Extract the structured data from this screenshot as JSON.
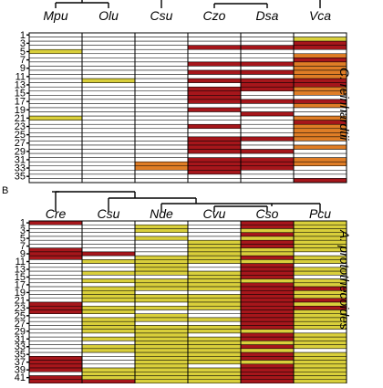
{
  "colors": {
    "empty": "#ffffff",
    "yellow": "#d9cf3b",
    "orange": "#df7d26",
    "darkred": "#a6161b",
    "grid": "#000000"
  },
  "panels": [
    {
      "letter": "",
      "species_label": "C. reinhardtii",
      "columns": [
        "Mpu",
        "Olu",
        "Csu",
        "Czo",
        "Dsa",
        "Vca"
      ],
      "row_labels": [
        "1",
        "3",
        "5",
        "7",
        "9",
        "11",
        "13",
        "15",
        "17",
        "19",
        "21",
        "23",
        "25",
        "27",
        "29",
        "31",
        "33",
        "35"
      ],
      "row_count": 36,
      "cells": [
        "000000",
        "00000y",
        "00000r",
        "000rrr",
        "y00000",
        "00000o",
        "00000r",
        "000rro",
        "00000o",
        "000rro",
        "00000o",
        "0y0rrr",
        "0000rr",
        "000rro",
        "000r0o",
        "000r00",
        "000rrr",
        "00000o",
        "000r00",
        "0000r0",
        "y0000o",
        "00000r",
        "000r0o",
        "00000o",
        "00000o",
        "000rro",
        "000r00",
        "000r0o",
        "000rr0",
        "000000",
        "000rro",
        "00orro",
        "00orr0",
        "000r00",
        "000000",
        "00000r"
      ]
    },
    {
      "letter": "B",
      "species_label": "A. protothecoides",
      "columns": [
        "Cre",
        "Csu",
        "Nde",
        "Cvu",
        "Cso",
        "Pcu"
      ],
      "row_labels": [
        "1",
        "3",
        "5",
        "7",
        "9",
        "11",
        "13",
        "15",
        "17",
        "19",
        "21",
        "23",
        "25",
        "27",
        "29",
        "31",
        "33",
        "35",
        "37",
        "39",
        "41"
      ],
      "row_count": 42,
      "cells": [
        "r000ry",
        "00y0ry",
        "00y0yy",
        "0000ry",
        "00y0yy",
        "000yry",
        "000yry",
        "r00yyy",
        "rr0yy0",
        "r0yyry",
        "0yyyyy",
        "00y0r0",
        "00y0ry",
        "0yyyry",
        "000yr0",
        "0yyyyy",
        "00yyry",
        "0yyyrr",
        "0y00ry",
        "0yyyry",
        "0yyyrr",
        "r00yry",
        "ryyyrr",
        "ry00ry",
        "00y0ry",
        "0yyyry",
        "0y00ry",
        "0yyyry",
        "0yyyy0",
        "00y0ry",
        "0yyyry",
        "00yyyy",
        "0yyyry",
        "0yyyy0",
        "00yyry",
        "r0yyry",
        "r0yyyy",
        "r0y0ry",
        "ryyyry",
        "0yyyry",
        "ryyyry",
        "rryyry"
      ]
    }
  ]
}
